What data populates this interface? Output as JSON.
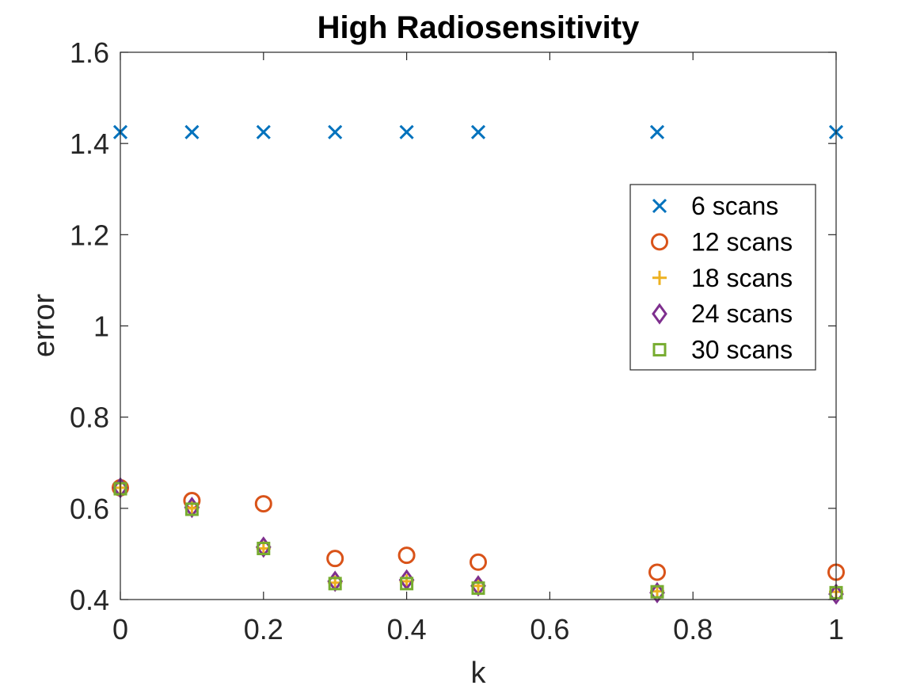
{
  "chart_data": {
    "type": "scatter",
    "title": "High Radiosensitivity",
    "xlabel": "k",
    "ylabel": "error",
    "xlim": [
      0,
      1
    ],
    "ylim": [
      0.4,
      1.6
    ],
    "xticks": [
      0,
      0.2,
      0.4,
      0.6,
      0.8,
      1
    ],
    "xtick_labels": [
      "0",
      "0.2",
      "0.4",
      "0.6",
      "0.8",
      "1"
    ],
    "yticks": [
      0.4,
      0.6,
      0.8,
      1.0,
      1.2,
      1.4,
      1.6
    ],
    "ytick_labels": [
      "0.4",
      "0.6",
      "0.8",
      "1",
      "1.2",
      "1.4",
      "1.6"
    ],
    "grid": false,
    "legend_position": "right",
    "x": [
      0,
      0.1,
      0.2,
      0.3,
      0.4,
      0.5,
      0.75,
      1
    ],
    "series": [
      {
        "name": "6 scans",
        "marker": "x",
        "color": "#0072BD",
        "values": [
          1.425,
          1.425,
          1.425,
          1.425,
          1.425,
          1.425,
          1.425,
          1.425
        ]
      },
      {
        "name": "12 scans",
        "marker": "circle",
        "color": "#D95319",
        "values": [
          0.645,
          0.617,
          0.61,
          0.49,
          0.497,
          0.482,
          0.46,
          0.46
        ]
      },
      {
        "name": "18 scans",
        "marker": "plus",
        "color": "#EDB120",
        "values": [
          0.645,
          0.6,
          0.512,
          0.437,
          0.44,
          0.43,
          0.418,
          0.417
        ]
      },
      {
        "name": "24 scans",
        "marker": "diamond",
        "color": "#7E2F8E",
        "values": [
          0.645,
          0.602,
          0.515,
          0.44,
          0.443,
          0.43,
          0.415,
          0.412
        ]
      },
      {
        "name": "30 scans",
        "marker": "square",
        "color": "#77AC30",
        "values": [
          0.643,
          0.598,
          0.512,
          0.435,
          0.435,
          0.425,
          0.417,
          0.415
        ]
      }
    ]
  }
}
